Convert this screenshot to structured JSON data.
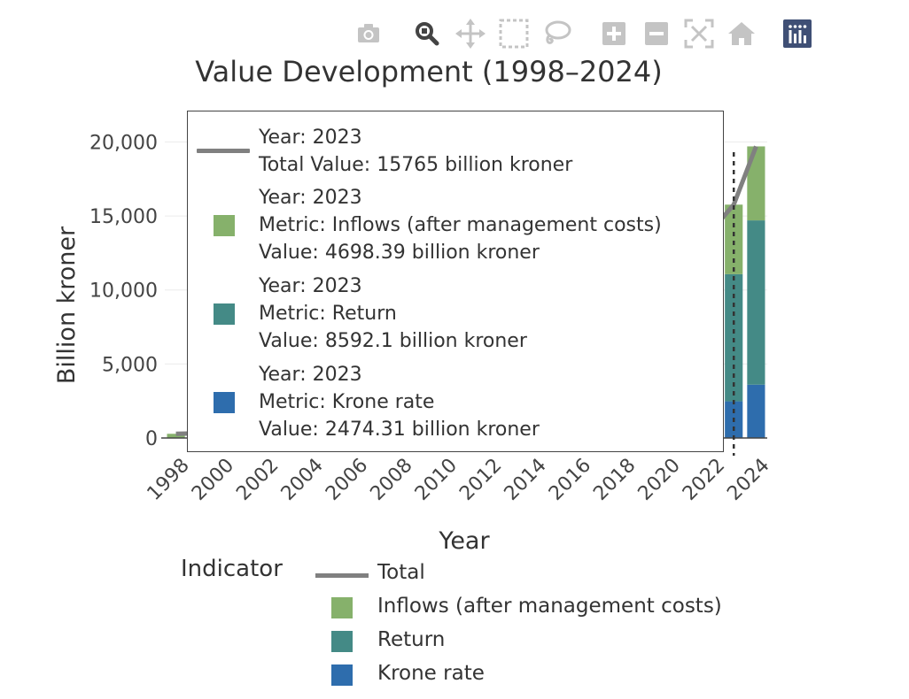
{
  "toolbar": {
    "buttons": [
      {
        "name": "camera-icon",
        "label": "Download plot as a png"
      },
      {
        "name": "zoom-icon",
        "label": "Zoom"
      },
      {
        "name": "pan-icon",
        "label": "Pan"
      },
      {
        "name": "box-select-icon",
        "label": "Box Select"
      },
      {
        "name": "lasso-select-icon",
        "label": "Lasso Select"
      },
      {
        "name": "zoom-in-icon",
        "label": "Zoom in"
      },
      {
        "name": "zoom-out-icon",
        "label": "Zoom out"
      },
      {
        "name": "autoscale-icon",
        "label": "Autoscale"
      },
      {
        "name": "reset-axes-icon",
        "label": "Reset axes"
      },
      {
        "name": "plotly-logo-icon",
        "label": "Produced with Plotly"
      }
    ],
    "active": "zoom-icon",
    "colors": {
      "idle": "#c4c4c4",
      "active": "#444444",
      "logo_bg": "#3f4f75"
    }
  },
  "chart_data": {
    "type": "bar",
    "title": "Value Development (1998–2024)",
    "xlabel": "Year",
    "ylabel": "Billion kroner",
    "x_tick_labels": [
      "1998",
      "2000",
      "2002",
      "2004",
      "2006",
      "2008",
      "2010",
      "2012",
      "2014",
      "2016",
      "2018",
      "2020",
      "2022",
      "2024"
    ],
    "x_range": [
      1997.5,
      2024.5
    ],
    "y_tick_labels": [
      "0",
      "5,000",
      "10,000",
      "15,000",
      "20,000"
    ],
    "y_ticks": [
      0,
      5000,
      10000,
      15000,
      20000
    ],
    "ylim": [
      -600,
      21700
    ],
    "barmode": "stack",
    "categories": [
      1998,
      1999,
      2022,
      2023,
      2024
    ],
    "series": [
      {
        "name": "Krone rate",
        "color": "#2e6dad",
        "values": [
          0,
          0,
          2400,
          2474.31,
          3600
        ]
      },
      {
        "name": "Return",
        "color": "#448a86",
        "values": [
          0,
          0,
          8600,
          8592.1,
          11100
        ]
      },
      {
        "name": "Inflows (after management costs)",
        "color": "#86b16b",
        "values": [
          280,
          310,
          4800,
          4698.39,
          5000
        ]
      }
    ],
    "line": {
      "name": "Total",
      "color": "#808080",
      "x": [
        1998,
        1999,
        2022,
        2023,
        2024
      ],
      "y": [
        280,
        310,
        14000,
        15765,
        19700
      ]
    },
    "hover_year": 2023,
    "grid": true,
    "legend_title": "Indicator",
    "legend_position": "bottom"
  },
  "hover": {
    "total": {
      "year": "Year: 2023",
      "value": "Total Value: 15765 billion kroner"
    },
    "items": [
      {
        "year": "Year: 2023",
        "metric": "Metric: Inflows (after management costs)",
        "value": "Value: 4698.39 billion kroner",
        "color": "#86b16b"
      },
      {
        "year": "Year: 2023",
        "metric": "Metric: Return",
        "value": "Value: 8592.1 billion kroner",
        "color": "#448a86"
      },
      {
        "year": "Year: 2023",
        "metric": "Metric: Krone rate",
        "value": "Value: 2474.31 billion kroner",
        "color": "#2e6dad"
      }
    ]
  },
  "legend": {
    "title": "Indicator",
    "items": [
      {
        "label": "Total",
        "kind": "line",
        "color": "#808080"
      },
      {
        "label": "Inflows (after management costs)",
        "kind": "box",
        "color": "#86b16b"
      },
      {
        "label": "Return",
        "kind": "box",
        "color": "#448a86"
      },
      {
        "label": "Krone rate",
        "kind": "box",
        "color": "#2e6dad"
      }
    ]
  }
}
